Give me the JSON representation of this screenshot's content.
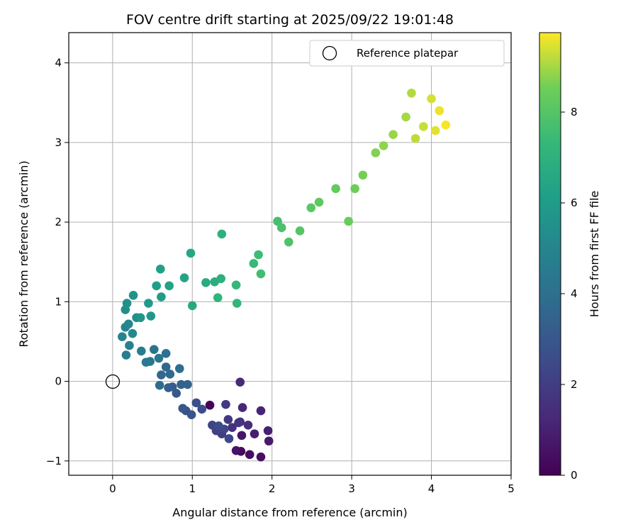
{
  "chart_data": {
    "type": "scatter",
    "title": "FOV centre drift starting at 2025/09/22 19:01:48",
    "xlabel": "Angular distance from reference (arcmin)",
    "ylabel": "Rotation from reference (arcmin)",
    "xlim": [
      -0.55,
      5.0
    ],
    "ylim": [
      -1.18,
      4.38
    ],
    "x_ticks": [
      0,
      1,
      2,
      3,
      4,
      5
    ],
    "y_ticks": [
      -1,
      0,
      1,
      2,
      3,
      4
    ],
    "grid": true,
    "legend": {
      "placement": "top-right",
      "entries": [
        "Reference platepar"
      ]
    },
    "reference_point": {
      "label": "Reference platepar",
      "x": 0,
      "y": 0
    },
    "colorbar": {
      "label": "Hours from first FF file",
      "colormap": "viridis",
      "range": [
        0,
        9.75
      ],
      "ticks": [
        0,
        2,
        4,
        6,
        8
      ]
    },
    "series": [
      {
        "values_columns": [
          "x",
          "y",
          "hours"
        ],
        "points": [
          [
            1.22,
            -0.3,
            0.1
          ],
          [
            1.61,
            -0.88,
            0.3
          ],
          [
            1.72,
            -0.92,
            0.4
          ],
          [
            1.86,
            -0.95,
            0.5
          ],
          [
            1.55,
            -0.87,
            0.6
          ],
          [
            1.62,
            -0.68,
            0.7
          ],
          [
            1.96,
            -0.75,
            0.8
          ],
          [
            1.78,
            -0.66,
            0.9
          ],
          [
            1.95,
            -0.62,
            1.0
          ],
          [
            1.86,
            -0.37,
            1.1
          ],
          [
            1.63,
            -0.33,
            1.2
          ],
          [
            1.6,
            -0.01,
            1.3
          ],
          [
            1.7,
            -0.55,
            1.4
          ],
          [
            1.6,
            -0.51,
            1.5
          ],
          [
            1.5,
            -0.58,
            1.6
          ],
          [
            1.58,
            -0.52,
            1.7
          ],
          [
            1.45,
            -0.48,
            1.8
          ],
          [
            1.42,
            -0.29,
            1.9
          ],
          [
            1.37,
            -0.66,
            2.0
          ],
          [
            1.3,
            -0.62,
            2.1
          ],
          [
            1.25,
            -0.55,
            2.2
          ],
          [
            1.4,
            -0.6,
            2.3
          ],
          [
            1.46,
            -0.72,
            2.4
          ],
          [
            1.33,
            -0.56,
            2.5
          ],
          [
            1.12,
            -0.35,
            2.6
          ],
          [
            1.05,
            -0.27,
            2.7
          ],
          [
            0.92,
            -0.37,
            2.8
          ],
          [
            0.99,
            -0.42,
            2.9
          ],
          [
            0.88,
            -0.34,
            3.0
          ],
          [
            0.8,
            -0.15,
            3.1
          ],
          [
            0.75,
            -0.07,
            3.2
          ],
          [
            0.7,
            -0.08,
            3.3
          ],
          [
            0.86,
            -0.04,
            3.4
          ],
          [
            0.94,
            -0.04,
            3.5
          ],
          [
            0.61,
            0.08,
            3.6
          ],
          [
            0.67,
            0.18,
            3.7
          ],
          [
            0.72,
            0.09,
            3.8
          ],
          [
            0.59,
            -0.05,
            3.9
          ],
          [
            0.84,
            0.16,
            4.0
          ],
          [
            0.67,
            0.35,
            4.1
          ],
          [
            0.52,
            0.4,
            4.2
          ],
          [
            0.47,
            0.25,
            4.3
          ],
          [
            0.58,
            0.29,
            4.4
          ],
          [
            0.42,
            0.24,
            4.5
          ],
          [
            0.36,
            0.38,
            4.6
          ],
          [
            0.17,
            0.33,
            4.7
          ],
          [
            0.21,
            0.45,
            4.8
          ],
          [
            0.16,
            0.68,
            4.9
          ],
          [
            0.12,
            0.56,
            5.0
          ],
          [
            0.2,
            0.72,
            5.1
          ],
          [
            0.25,
            0.6,
            5.2
          ],
          [
            0.3,
            0.8,
            5.3
          ],
          [
            0.16,
            0.9,
            5.4
          ],
          [
            0.18,
            0.98,
            5.5
          ],
          [
            0.26,
            1.08,
            5.6
          ],
          [
            0.35,
            0.8,
            5.7
          ],
          [
            0.48,
            0.82,
            5.8
          ],
          [
            0.45,
            0.98,
            5.9
          ],
          [
            0.61,
            1.06,
            6.0
          ],
          [
            0.55,
            1.2,
            6.1
          ],
          [
            0.6,
            1.41,
            6.2
          ],
          [
            0.71,
            1.2,
            6.3
          ],
          [
            0.9,
            1.3,
            6.4
          ],
          [
            0.98,
            1.61,
            6.5
          ],
          [
            1.0,
            0.95,
            6.6
          ],
          [
            1.17,
            1.24,
            6.7
          ],
          [
            1.28,
            1.25,
            6.8
          ],
          [
            1.36,
            1.29,
            6.9
          ],
          [
            1.37,
            1.85,
            7.0
          ],
          [
            1.32,
            1.05,
            7.1
          ],
          [
            1.56,
            0.98,
            7.2
          ],
          [
            1.55,
            1.21,
            7.3
          ],
          [
            1.77,
            1.48,
            7.4
          ],
          [
            1.83,
            1.59,
            7.5
          ],
          [
            1.86,
            1.35,
            7.6
          ],
          [
            2.07,
            2.01,
            7.7
          ],
          [
            2.12,
            1.93,
            7.8
          ],
          [
            2.21,
            1.75,
            7.9
          ],
          [
            2.35,
            1.89,
            8.0
          ],
          [
            2.49,
            2.18,
            8.1
          ],
          [
            2.59,
            2.25,
            8.2
          ],
          [
            2.8,
            2.42,
            8.3
          ],
          [
            2.96,
            2.01,
            8.4
          ],
          [
            3.04,
            2.42,
            8.5
          ],
          [
            3.14,
            2.59,
            8.6
          ],
          [
            3.3,
            2.87,
            8.7
          ],
          [
            3.4,
            2.96,
            8.8
          ],
          [
            3.52,
            3.1,
            8.9
          ],
          [
            3.68,
            3.32,
            9.0
          ],
          [
            3.75,
            3.62,
            9.1
          ],
          [
            3.8,
            3.05,
            9.2
          ],
          [
            3.9,
            3.2,
            9.3
          ],
          [
            4.0,
            3.55,
            9.4
          ],
          [
            4.05,
            3.15,
            9.5
          ],
          [
            4.1,
            3.4,
            9.6
          ],
          [
            4.18,
            3.22,
            9.7
          ]
        ]
      }
    ]
  }
}
